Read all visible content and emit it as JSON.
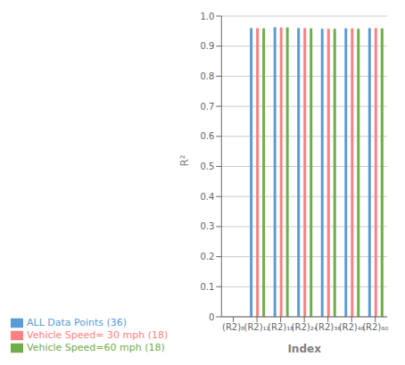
{
  "chart_data": {
    "type": "bar",
    "categories": [
      "(R2)₈",
      "(R2)₁₂",
      "(R2)₁₈",
      "(R2)₂₄",
      "(R2)₃₆",
      "(R2)₄₈",
      "(R2)₆₀"
    ],
    "series": [
      {
        "name": "ALL Data Points (36)",
        "color": "#5B9BD5",
        "values": [
          0.0,
          0.96,
          0.963,
          0.96,
          0.958,
          0.959,
          0.96
        ]
      },
      {
        "name": "Vehicle Speed= 30 mph (18)",
        "color": "#FF8080",
        "values": [
          0.0,
          0.96,
          0.962,
          0.96,
          0.958,
          0.959,
          0.96
        ]
      },
      {
        "name": "Vehicle Speed=60 mph (18)",
        "color": "#70AD47",
        "values": [
          0.0,
          0.959,
          0.962,
          0.959,
          0.958,
          0.958,
          0.959
        ]
      }
    ],
    "x_label": "Index",
    "y_label": "R²",
    "ylim": [
      0,
      1.0
    ],
    "yticks": [
      0,
      0.1,
      0.2,
      0.3,
      0.4,
      0.5,
      0.6,
      0.7,
      0.8,
      0.9,
      {
        "value": 1,
        "label": "1.0"
      }
    ],
    "grid": true,
    "legend": "bottom left"
  }
}
